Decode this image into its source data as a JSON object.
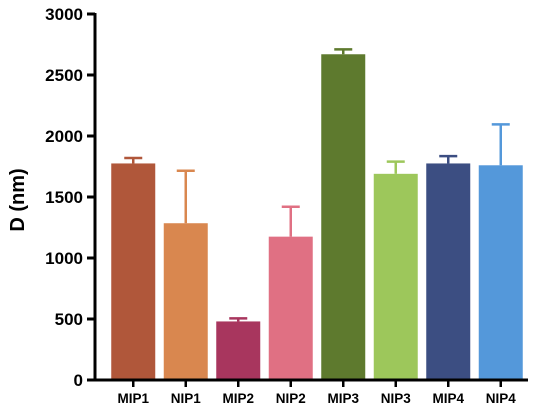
{
  "chart_data": {
    "type": "bar",
    "title": "",
    "xlabel": "",
    "ylabel": "D (nm)",
    "ylim": [
      0,
      3000
    ],
    "yticks": [
      0,
      500,
      1000,
      1500,
      2000,
      2500,
      3000
    ],
    "grid": false,
    "legend": "none",
    "categories": [
      "MIP1",
      "NIP1",
      "MIP2",
      "NIP2",
      "MIP3",
      "NIP3",
      "MIP4",
      "NIP4"
    ],
    "values": [
      1775,
      1285,
      480,
      1175,
      2670,
      1690,
      1775,
      1760
    ],
    "errors": [
      45,
      430,
      25,
      245,
      40,
      100,
      60,
      335
    ],
    "colors": [
      "#b0573a",
      "#d9874f",
      "#a8365e",
      "#e07083",
      "#5e7a2e",
      "#9dc75b",
      "#3c4e82",
      "#5498da"
    ]
  }
}
